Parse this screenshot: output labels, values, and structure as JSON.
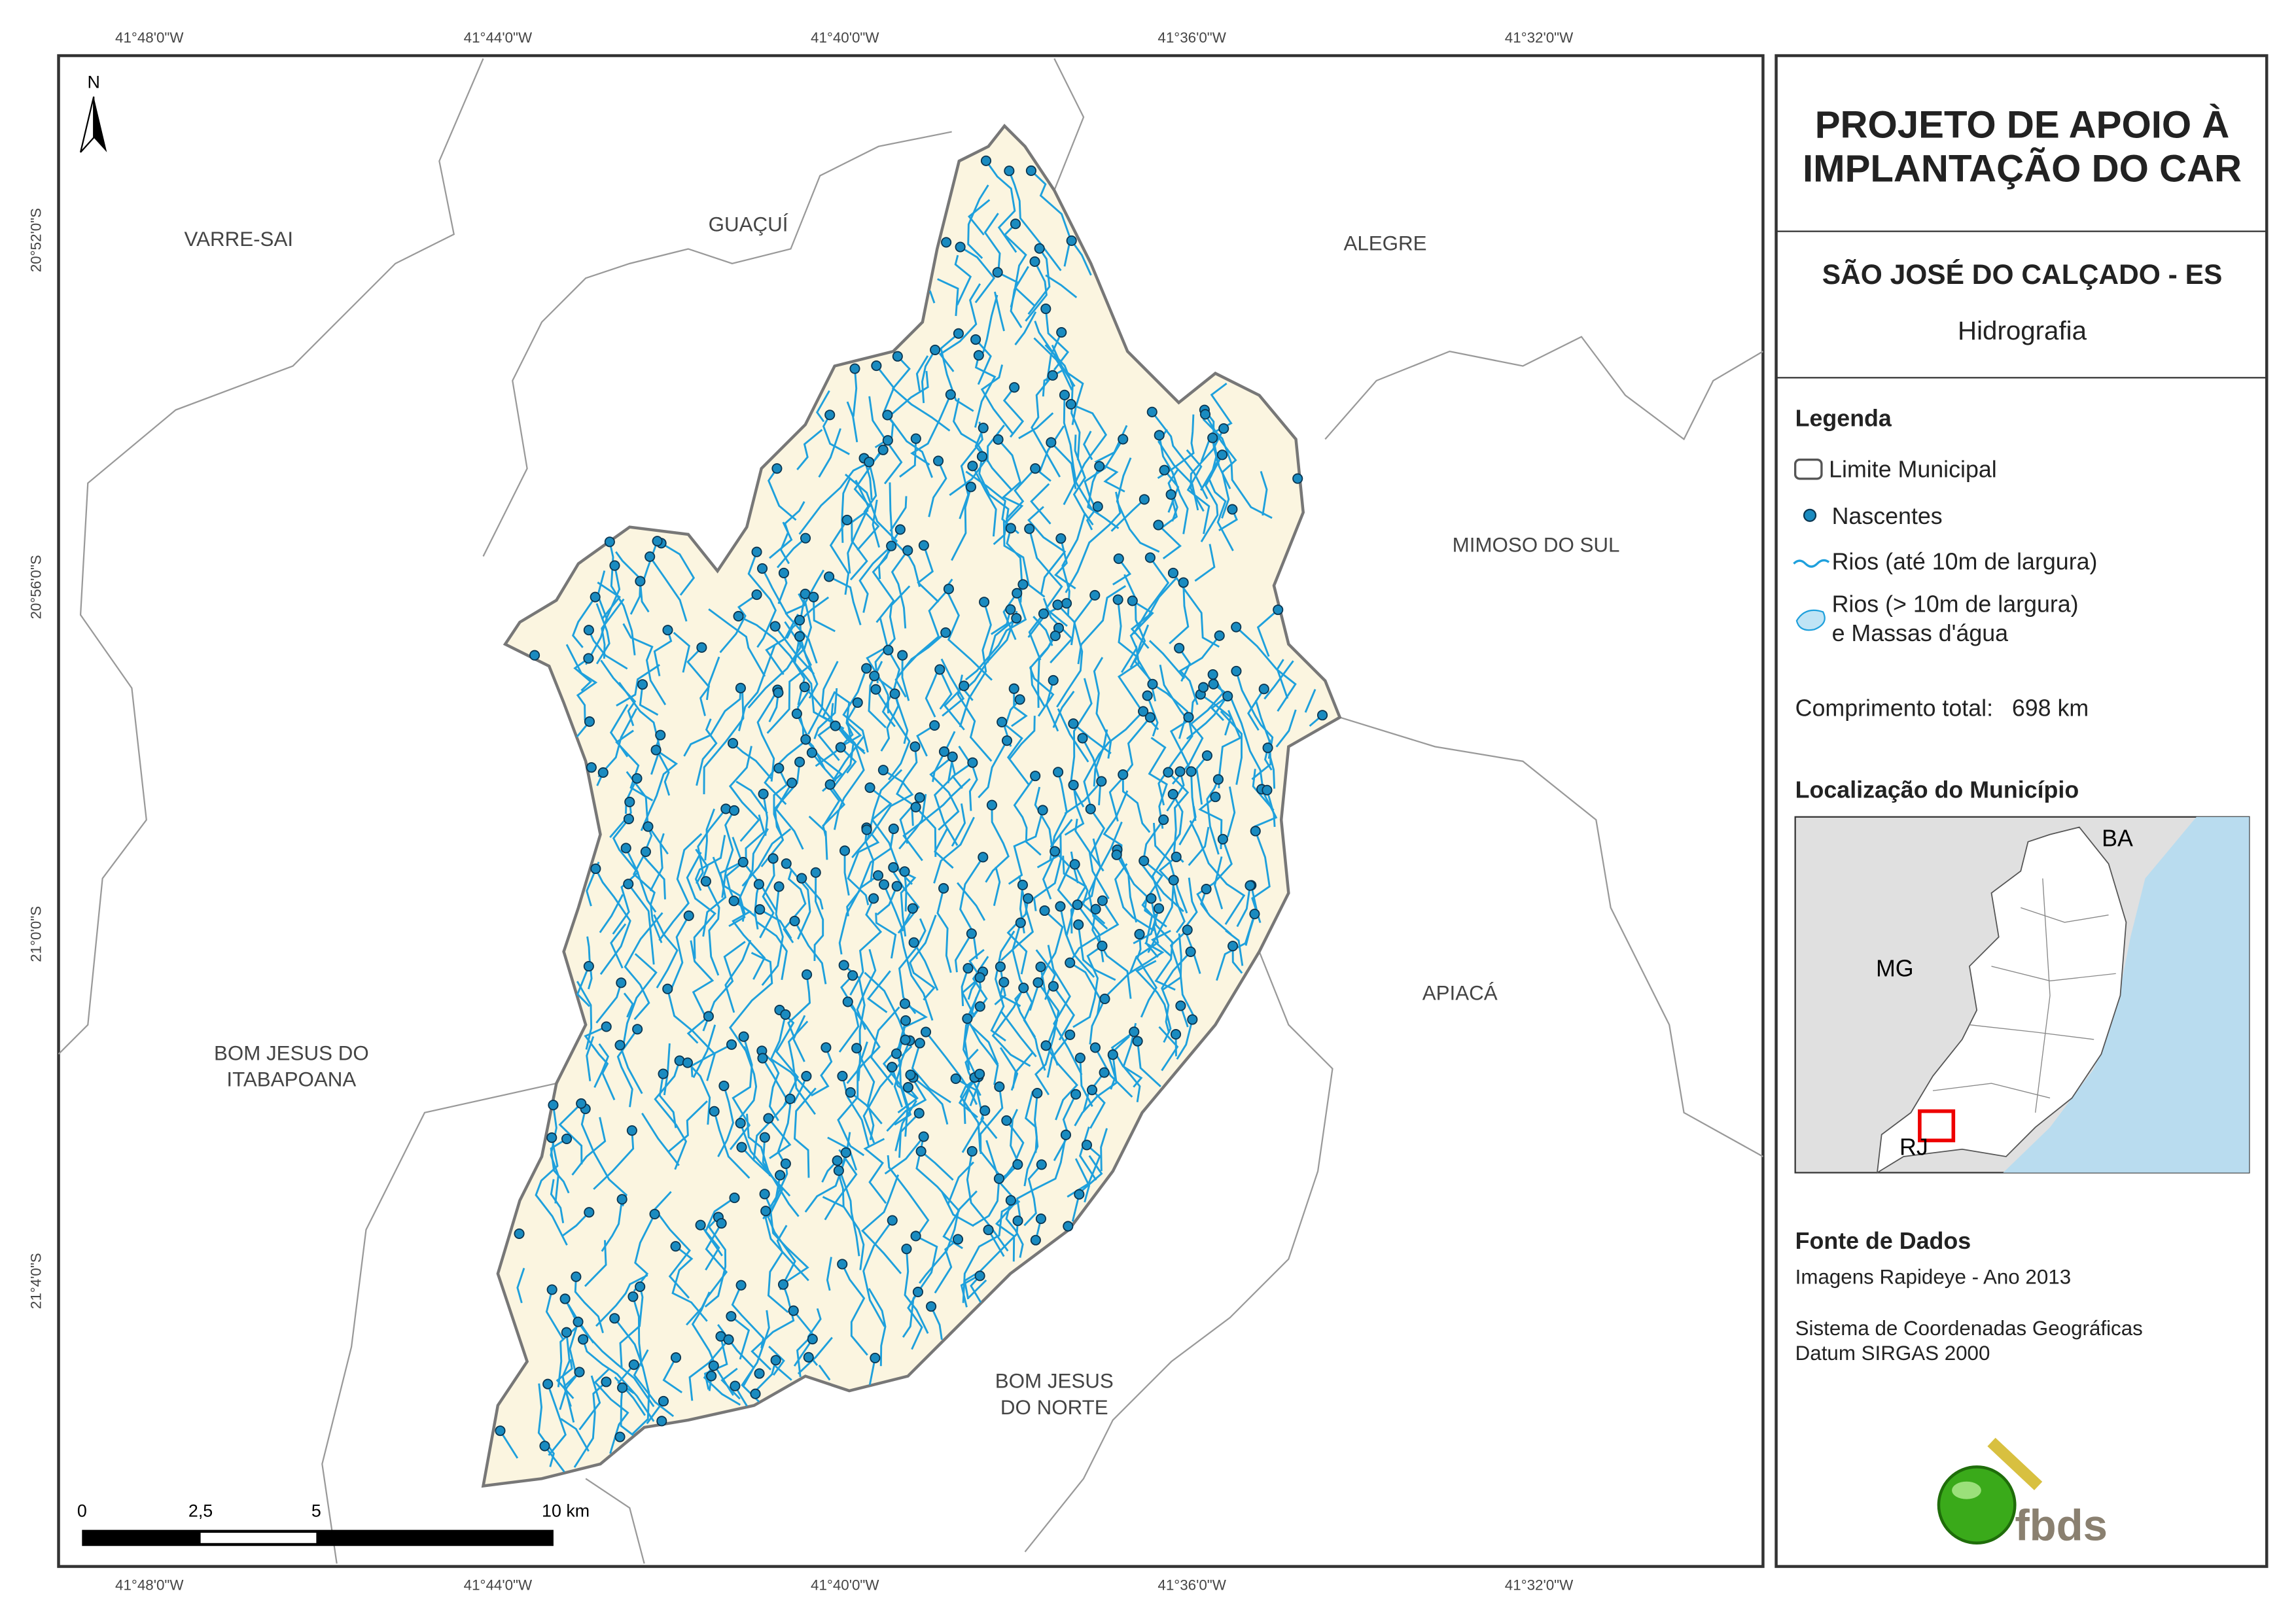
{
  "map": {
    "graticule": {
      "longitude": [
        "41°48'0\"W",
        "41°44'0\"W",
        "41°40'0\"W",
        "41°36'0\"W",
        "41°32'0\"W"
      ],
      "latitude": [
        "20°52'0\"S",
        "20°56'0\"S",
        "21°0'0\"S",
        "21°4'0\"S"
      ]
    },
    "north": "N",
    "regions": [
      {
        "lines": [
          "VARRE-SAI"
        ]
      },
      {
        "lines": [
          "GUAÇUÍ"
        ]
      },
      {
        "lines": [
          "ALEGRE"
        ]
      },
      {
        "lines": [
          "MIMOSO DO SUL"
        ]
      },
      {
        "lines": [
          "APIACÁ"
        ]
      },
      {
        "lines": [
          "BOM JESUS DO",
          "ITABAPOANA"
        ]
      },
      {
        "lines": [
          "BOM JESUS",
          "DO NORTE"
        ]
      }
    ],
    "scale_bar": [
      "0",
      "2,5",
      "5",
      "10 km"
    ]
  },
  "panel": {
    "title": [
      "PROJETO DE APOIO À",
      "IMPLANTAÇÃO DO CAR"
    ],
    "municipality": "SÃO JOSÉ DO CALÇADO - ES",
    "theme": "Hidrografia",
    "legend": {
      "title": "Legenda",
      "items": [
        [
          "Limite Municipal"
        ],
        [
          "Nascentes"
        ],
        [
          "Rios (até 10m de largura)"
        ],
        [
          "Rios (> 10m de largura)",
          "e Massas d'água"
        ]
      ]
    },
    "length": {
      "label": "Comprimento total:",
      "value": "698 km"
    },
    "location": {
      "title": "Localização do Município",
      "labels": [
        "BA",
        "MG",
        "RJ"
      ]
    },
    "sources": {
      "title": "Fonte de Dados",
      "lines": [
        "Imagens Rapideye - Ano 2013",
        "Sistema de Coordenadas Geográficas",
        "Datum SIRGAS 2000"
      ]
    },
    "logo": "fbds"
  }
}
